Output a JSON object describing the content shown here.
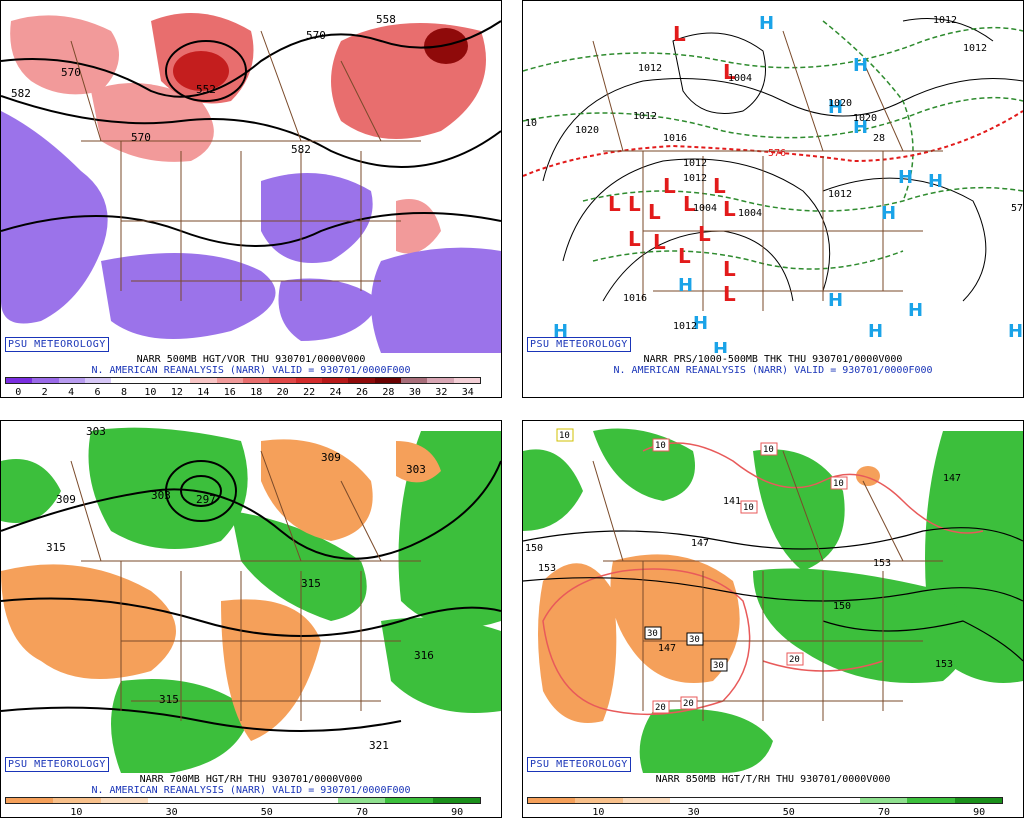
{
  "brand_label": "PSU METEOROLOGY",
  "panels": [
    {
      "id": "vorticity",
      "line1": "NARR 500MB HGT/VOR THU 930701/0000V000",
      "line2": "N. AMERICAN REANALYSIS (NARR) VALID = 930701/0000F000",
      "scale_ticks": [
        "0",
        "2",
        "4",
        "6",
        "8",
        "10",
        "12",
        "14",
        "16",
        "18",
        "20",
        "22",
        "24",
        "26",
        "28",
        "30",
        "32",
        "34"
      ],
      "scale_colors": [
        "#7a2ee0",
        "#9a6ae8",
        "#b89cf0",
        "#d7c8f7",
        "#ffffff",
        "#ffffff",
        "#ffffff",
        "#f8c6c6",
        "#f09a9a",
        "#e86e6e",
        "#e04848",
        "#d22b2b",
        "#b71818",
        "#8f0a0a",
        "#6a0000",
        "#a86e7a",
        "#d8a6b4",
        "#f3cfd6"
      ],
      "contour_labels": [
        "570",
        "558",
        "582",
        "552",
        "570",
        "582",
        "570"
      ]
    },
    {
      "id": "pressure",
      "line1": "NARR PRS/1000-500MB THK THU 930701/0000V000",
      "line2": "N. AMERICAN REANALYSIS (NARR) VALID = 930701/0000F000",
      "isobar_labels": [
        "1012",
        "1012",
        "1004",
        "1020",
        "1020",
        "1012",
        "1012",
        "1004",
        "1004",
        "1012",
        "1012",
        "1016",
        "1020",
        "1012",
        "1012",
        "1016",
        "28",
        "10",
        "576"
      ]
    },
    {
      "id": "rh700",
      "line1": "NARR 700MB HGT/RH THU 930701/0000V000",
      "line2": "N. AMERICAN REANALYSIS (NARR) VALID = 930701/0000F000",
      "scale_ticks": [
        "10",
        "30",
        "50",
        "70",
        "90"
      ],
      "scale_colors": [
        "#f5a05a",
        "#f8c08a",
        "#fbdcbe",
        "#ffffff",
        "#ffffff",
        "#ffffff",
        "#ffffff",
        "#8fe08f",
        "#3cbf3c",
        "#1a8f1a"
      ],
      "contour_labels": [
        "309",
        "303",
        "297",
        "309",
        "303",
        "315",
        "315",
        "315",
        "316",
        "321",
        "303"
      ]
    },
    {
      "id": "temp850",
      "line1": "NARR 850MB HGT/T/RH THU 930701/0000V000",
      "line2": "",
      "scale_ticks": [
        "10",
        "30",
        "50",
        "70",
        "90"
      ],
      "scale_colors": [
        "#f5a05a",
        "#f8c08a",
        "#fbdcbe",
        "#ffffff",
        "#ffffff",
        "#ffffff",
        "#ffffff",
        "#8fe08f",
        "#3cbf3c",
        "#1a8f1a"
      ],
      "contour_labels": [
        "150",
        "153",
        "147",
        "141",
        "147",
        "150",
        "153",
        "147",
        "153"
      ],
      "temp_labels": [
        "10",
        "10",
        "10",
        "10",
        "30",
        "30",
        "30",
        "20",
        "20",
        "20",
        "10"
      ]
    }
  ]
}
